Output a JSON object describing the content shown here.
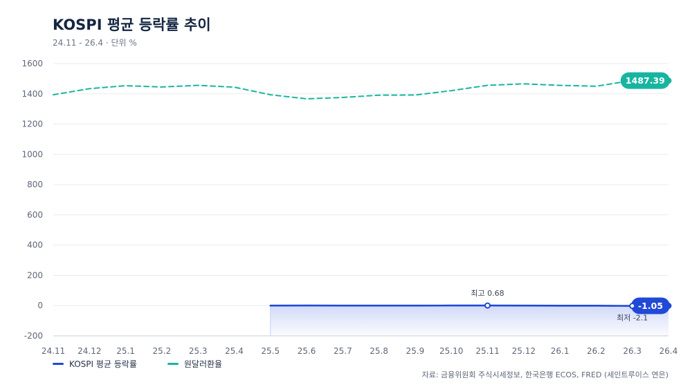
{
  "title": "KOSPI 평균 등락률 추이",
  "subtitle": "24.11 - 26.4 · 단위 %",
  "source": "자료: 금융위원회 주식시세정보, 한국은행 ECOS, FRED (세인트루이스 연은)",
  "chart_data": {
    "type": "line",
    "categories": [
      "24.11",
      "24.12",
      "25.1",
      "25.2",
      "25.3",
      "25.4",
      "25.5",
      "25.6",
      "25.7",
      "25.8",
      "25.9",
      "25.10",
      "25.11",
      "25.12",
      "26.1",
      "26.2",
      "26.3",
      "26.4"
    ],
    "ylim": [
      -200,
      1600
    ],
    "yticks": [
      -200,
      0,
      200,
      400,
      600,
      800,
      1000,
      1200,
      1400,
      1600
    ],
    "grid": true,
    "legend_position": "bottom-left",
    "series": [
      {
        "name": "KOSPI 평균 등락률",
        "color": "#1f49d6",
        "style": "solid",
        "area": true,
        "values": [
          null,
          null,
          null,
          null,
          null,
          null,
          0.2,
          0.4,
          0.1,
          -0.1,
          0.2,
          0.5,
          0.68,
          0.3,
          -0.3,
          -0.5,
          -2.1,
          -1.05
        ],
        "end_label": "-1.05",
        "annotations": [
          {
            "category": "25.11",
            "value": 0.68,
            "text": "최고 0.68",
            "position": "above"
          },
          {
            "category": "26.3",
            "value": -2.1,
            "text": "최저 -2.1",
            "position": "below"
          }
        ]
      },
      {
        "name": "원달러환율",
        "color": "#17b5a0",
        "style": "dashed",
        "area": false,
        "values": [
          1394,
          1434,
          1454,
          1445,
          1456,
          1444,
          1394,
          1367,
          1376,
          1391,
          1392,
          1421,
          1456,
          1466,
          1456,
          1450,
          1488,
          1487.39
        ],
        "end_label": "1487.39"
      }
    ]
  }
}
